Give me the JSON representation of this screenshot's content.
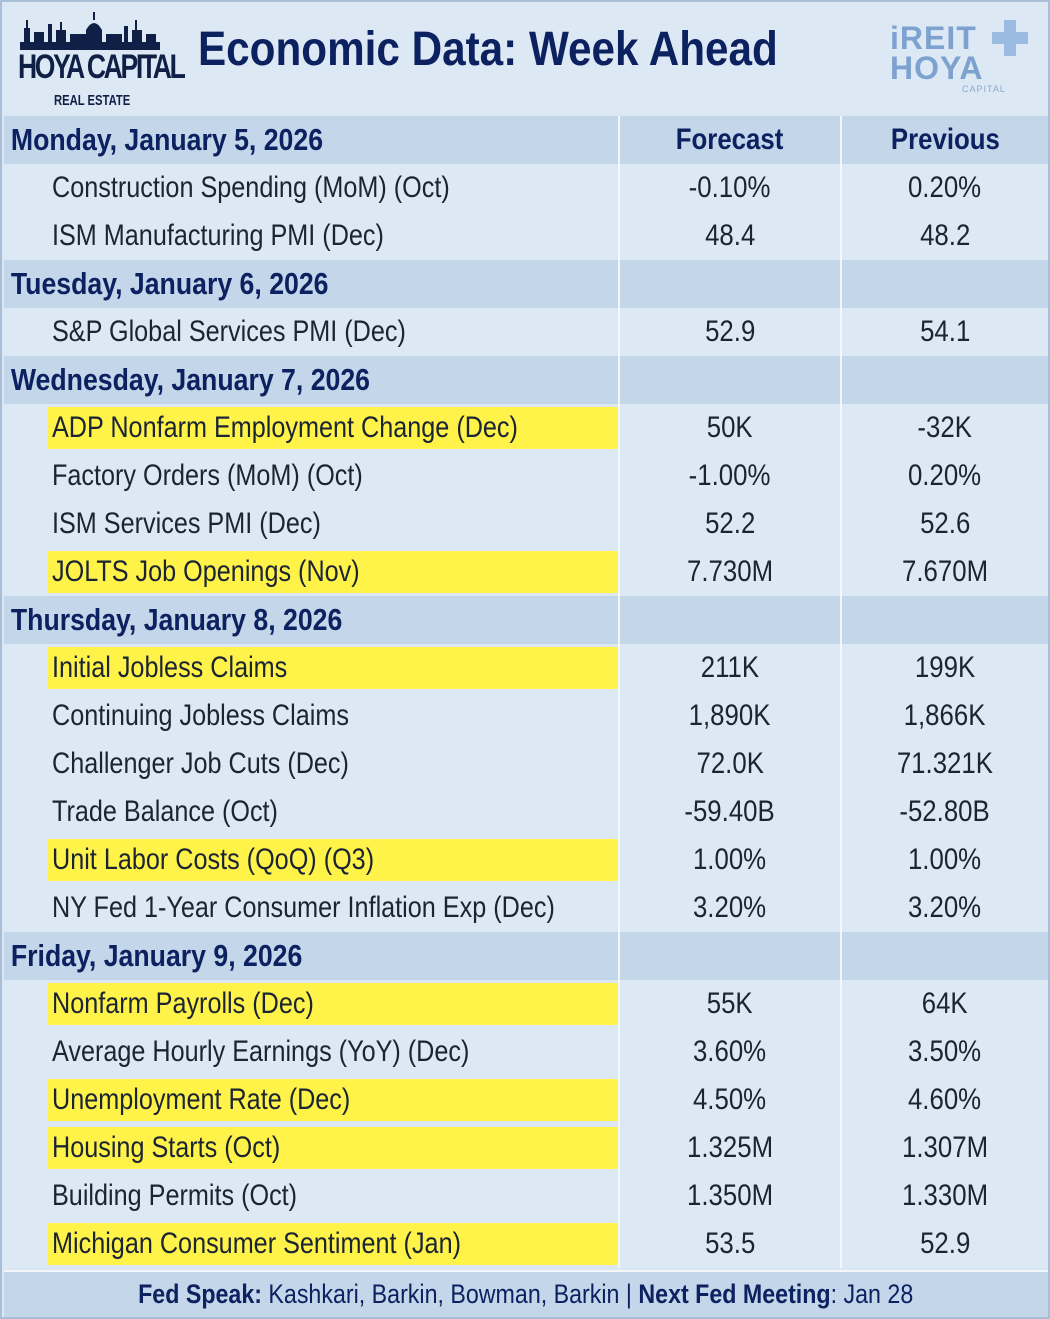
{
  "header": {
    "brand_left": "HOYA CAPITAL",
    "brand_left_sub": "REAL ESTATE",
    "title": "Economic Data: Week Ahead",
    "brand_right_line1": "iREIT",
    "brand_right_line2": "HOYA",
    "brand_right_sub": "CAPITAL"
  },
  "columns": {
    "forecast": "Forecast",
    "previous": "Previous"
  },
  "days": [
    {
      "label": "Monday, January 5, 2026",
      "items": [
        {
          "name": "Construction Spending (MoM) (Oct)",
          "forecast": "-0.10%",
          "previous": "0.20%",
          "highlight": false
        },
        {
          "name": "ISM Manufacturing PMI (Dec)",
          "forecast": "48.4",
          "previous": "48.2",
          "highlight": false
        }
      ]
    },
    {
      "label": "Tuesday, January 6, 2026",
      "items": [
        {
          "name": "S&P Global Services PMI (Dec)",
          "forecast": "52.9",
          "previous": "54.1",
          "highlight": false
        }
      ]
    },
    {
      "label": "Wednesday, January 7, 2026",
      "items": [
        {
          "name": "ADP Nonfarm Employment Change (Dec)",
          "forecast": "50K",
          "previous": "-32K",
          "highlight": true
        },
        {
          "name": "Factory Orders (MoM) (Oct)",
          "forecast": "-1.00%",
          "previous": "0.20%",
          "highlight": false
        },
        {
          "name": "ISM Services PMI (Dec)",
          "forecast": "52.2",
          "previous": "52.6",
          "highlight": false
        },
        {
          "name": "JOLTS Job Openings (Nov)",
          "forecast": "7.730M",
          "previous": "7.670M",
          "highlight": true
        }
      ]
    },
    {
      "label": "Thursday, January 8, 2026",
      "items": [
        {
          "name": "Initial Jobless Claims",
          "forecast": "211K",
          "previous": "199K",
          "highlight": true
        },
        {
          "name": "Continuing Jobless Claims",
          "forecast": "1,890K",
          "previous": "1,866K",
          "highlight": false
        },
        {
          "name": "Challenger Job Cuts (Dec)",
          "forecast": "72.0K",
          "previous": "71.321K",
          "highlight": false
        },
        {
          "name": "Trade Balance (Oct)",
          "forecast": "-59.40B",
          "previous": "-52.80B",
          "highlight": false
        },
        {
          "name": "Unit Labor Costs (QoQ) (Q3)",
          "forecast": "1.00%",
          "previous": "1.00%",
          "highlight": true
        },
        {
          "name": "NY Fed 1-Year Consumer Inflation Exp (Dec)",
          "forecast": "3.20%",
          "previous": "3.20%",
          "highlight": false
        }
      ]
    },
    {
      "label": "Friday, January 9, 2026",
      "items": [
        {
          "name": "Nonfarm Payrolls (Dec)",
          "forecast": "55K",
          "previous": "64K",
          "highlight": true
        },
        {
          "name": "Average Hourly Earnings  (YoY) (Dec)",
          "forecast": "3.60%",
          "previous": "3.50%",
          "highlight": false
        },
        {
          "name": "Unemployment Rate (Dec)",
          "forecast": "4.50%",
          "previous": "4.60%",
          "highlight": true
        },
        {
          "name": "Housing Starts (Oct)",
          "forecast": "1.325M",
          "previous": "1.307M",
          "highlight": true
        },
        {
          "name": "Building Permits (Oct)",
          "forecast": "1.350M",
          "previous": "1.330M",
          "highlight": false
        },
        {
          "name": "Michigan Consumer Sentiment (Jan)",
          "forecast": "53.5",
          "previous": "52.9",
          "highlight": true
        }
      ]
    }
  ],
  "footer": {
    "fed_speak_label": "Fed Speak:",
    "fed_speak_value": " Kashkari, Barkin, Bowman, Barkin | ",
    "next_meeting_label": "Next Fed Meeting",
    "next_meeting_value": ": Jan 28"
  },
  "colors": {
    "highlight": "#fff34a",
    "day_band": "#c4d6ea",
    "row_bg": "#dde8f5",
    "title": "#0c2160"
  }
}
